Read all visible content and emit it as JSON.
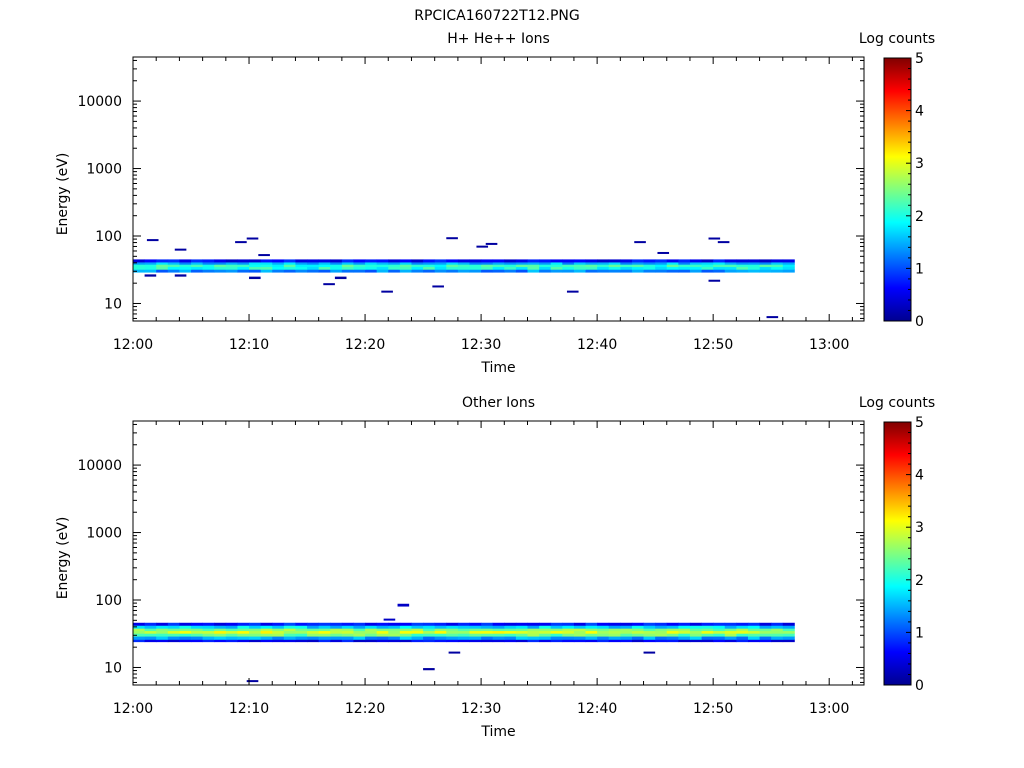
{
  "figure_title": "RPCICA160722T12.PNG",
  "chart_data": [
    {
      "type": "heatmap",
      "title": "H+ He++ Ions",
      "xlabel": "Time",
      "ylabel": "Energy (eV)",
      "x_ticks": [
        "12:00",
        "12:10",
        "12:20",
        "12:30",
        "12:40",
        "12:50",
        "13:00"
      ],
      "x_range_minutes": [
        0,
        63
      ],
      "y_scale": "log",
      "y_ticks": [
        "10",
        "100",
        "1000",
        "10000"
      ],
      "ylim": [
        5.5,
        45000
      ],
      "colorbar": {
        "label": "Log counts",
        "range": [
          0,
          5
        ],
        "ticks": [
          "0",
          "1",
          "2",
          "3",
          "4",
          "5"
        ],
        "colormap": "jet"
      },
      "data_end_minute": 57,
      "core_rows": [
        {
          "e_lo": 29,
          "e_hi": 32,
          "level": 1.3
        },
        {
          "e_lo": 32,
          "e_hi": 35,
          "level": 2.0
        },
        {
          "e_lo": 35,
          "e_hi": 38,
          "level": 2.1
        },
        {
          "e_lo": 38,
          "e_hi": 41,
          "level": 1.5
        },
        {
          "e_lo": 41,
          "e_hi": 45,
          "level": 0.6
        }
      ],
      "speckles": [
        {
          "t": 1.0,
          "dt": 1.0,
          "e_lo": 25,
          "e_hi": 27,
          "level": 0.1
        },
        {
          "t": 1.2,
          "dt": 1.0,
          "e_lo": 85,
          "e_hi": 90,
          "level": 0.1
        },
        {
          "t": 3.6,
          "dt": 1.0,
          "e_lo": 61,
          "e_hi": 65,
          "level": 0.1
        },
        {
          "t": 3.6,
          "dt": 1.0,
          "e_lo": 25,
          "e_hi": 27,
          "level": 0.1
        },
        {
          "t": 8.8,
          "dt": 1.0,
          "e_lo": 80,
          "e_hi": 84,
          "level": 0.1
        },
        {
          "t": 9.8,
          "dt": 1.0,
          "e_lo": 90,
          "e_hi": 95,
          "level": 0.1
        },
        {
          "t": 10.0,
          "dt": 1.0,
          "e_lo": 23,
          "e_hi": 25,
          "level": 0.1
        },
        {
          "t": 10.8,
          "dt": 1.0,
          "e_lo": 51,
          "e_hi": 54,
          "level": 0.1
        },
        {
          "t": 16.4,
          "dt": 1.0,
          "e_lo": 19,
          "e_hi": 20,
          "level": 0.1
        },
        {
          "t": 17.4,
          "dt": 1.0,
          "e_lo": 23,
          "e_hi": 25,
          "level": 0.1
        },
        {
          "t": 21.4,
          "dt": 1.0,
          "e_lo": 14.5,
          "e_hi": 15.5,
          "level": 0.1
        },
        {
          "t": 25.8,
          "dt": 1.0,
          "e_lo": 17.5,
          "e_hi": 18.5,
          "level": 0.1
        },
        {
          "t": 27.0,
          "dt": 1.0,
          "e_lo": 91,
          "e_hi": 96,
          "level": 0.1
        },
        {
          "t": 29.6,
          "dt": 1.0,
          "e_lo": 68,
          "e_hi": 72,
          "level": 0.1
        },
        {
          "t": 30.4,
          "dt": 1.0,
          "e_lo": 75,
          "e_hi": 79,
          "level": 0.1
        },
        {
          "t": 37.4,
          "dt": 1.0,
          "e_lo": 14.5,
          "e_hi": 15.5,
          "level": 0.1
        },
        {
          "t": 43.2,
          "dt": 1.0,
          "e_lo": 80,
          "e_hi": 84,
          "level": 0.1
        },
        {
          "t": 45.2,
          "dt": 1.0,
          "e_lo": 55,
          "e_hi": 58,
          "level": 0.1
        },
        {
          "t": 49.6,
          "dt": 1.0,
          "e_lo": 90,
          "e_hi": 95,
          "level": 0.1
        },
        {
          "t": 50.4,
          "dt": 1.0,
          "e_lo": 80,
          "e_hi": 84,
          "level": 0.1
        },
        {
          "t": 49.6,
          "dt": 1.0,
          "e_lo": 21,
          "e_hi": 22.5,
          "level": 0.1
        },
        {
          "t": 54.6,
          "dt": 1.0,
          "e_lo": 6.1,
          "e_hi": 6.5,
          "level": 0.1
        }
      ]
    },
    {
      "type": "heatmap",
      "title": "Other Ions",
      "xlabel": "Time",
      "ylabel": "Energy (eV)",
      "x_ticks": [
        "12:00",
        "12:10",
        "12:20",
        "12:30",
        "12:40",
        "12:50",
        "13:00"
      ],
      "x_range_minutes": [
        0,
        63
      ],
      "y_scale": "log",
      "y_ticks": [
        "10",
        "100",
        "1000",
        "10000"
      ],
      "ylim": [
        5.5,
        45000
      ],
      "colorbar": {
        "label": "Log counts",
        "range": [
          0,
          5
        ],
        "ticks": [
          "0",
          "1",
          "2",
          "3",
          "4",
          "5"
        ],
        "colormap": "jet"
      },
      "data_end_minute": 57,
      "core_rows": [
        {
          "e_lo": 24,
          "e_hi": 26,
          "level": 0.6
        },
        {
          "e_lo": 26,
          "e_hi": 29,
          "level": 1.4
        },
        {
          "e_lo": 29,
          "e_hi": 32,
          "level": 2.4
        },
        {
          "e_lo": 32,
          "e_hi": 35,
          "level": 2.9
        },
        {
          "e_lo": 35,
          "e_hi": 38,
          "level": 2.5
        },
        {
          "e_lo": 38,
          "e_hi": 42,
          "level": 1.7
        },
        {
          "e_lo": 42,
          "e_hi": 46,
          "level": 0.7
        }
      ],
      "speckles": [
        {
          "t": 9.8,
          "dt": 1.0,
          "e_lo": 6.1,
          "e_hi": 6.5,
          "level": 0.1
        },
        {
          "t": 21.6,
          "dt": 1.0,
          "e_lo": 50,
          "e_hi": 53,
          "level": 0.3
        },
        {
          "t": 22.8,
          "dt": 1.0,
          "e_lo": 80,
          "e_hi": 88,
          "level": 0.3
        },
        {
          "t": 25.0,
          "dt": 1.0,
          "e_lo": 9.1,
          "e_hi": 9.8,
          "level": 0.1
        },
        {
          "t": 27.2,
          "dt": 1.0,
          "e_lo": 16.2,
          "e_hi": 17.2,
          "level": 0.1
        },
        {
          "t": 44.0,
          "dt": 1.0,
          "e_lo": 16.2,
          "e_hi": 17.2,
          "level": 0.1
        }
      ]
    }
  ]
}
